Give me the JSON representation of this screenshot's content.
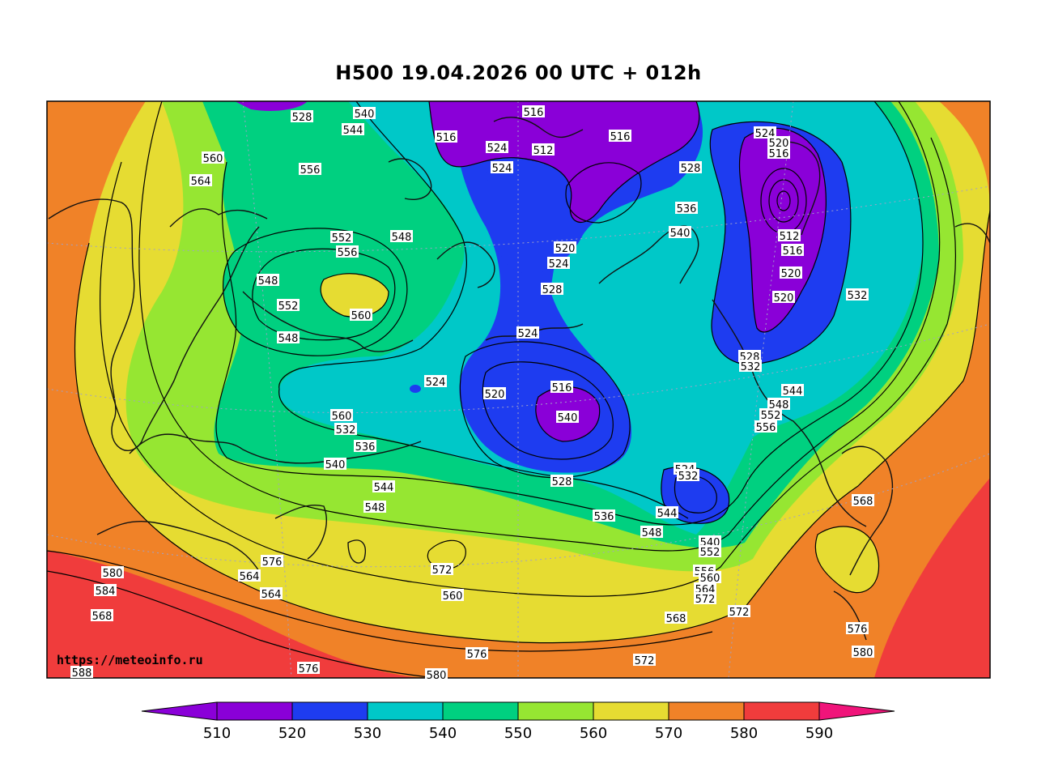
{
  "title": "H500  19.04.2026 00 UTC + 012h",
  "watermark": "https://meteoinfo.ru",
  "colorbar": {
    "ticks": [
      "510",
      "520",
      "530",
      "540",
      "550",
      "560",
      "570",
      "580",
      "590"
    ],
    "colors": [
      "#8a00d8",
      "#8a00d8",
      "#1e3cf0",
      "#00c8c8",
      "#00d080",
      "#96e632",
      "#e6dc32",
      "#f08228",
      "#f03c3c",
      "#f0147a"
    ]
  },
  "contour_labels": [
    "528",
    "540",
    "544",
    "516",
    "524",
    "524",
    "516",
    "512",
    "516",
    "528",
    "524",
    "520",
    "516",
    "560",
    "564",
    "556",
    "552",
    "556",
    "548",
    "548",
    "552",
    "560",
    "548",
    "520",
    "524",
    "536",
    "540",
    "512",
    "516",
    "520",
    "520",
    "532",
    "528",
    "524",
    "528",
    "532",
    "524",
    "520",
    "516",
    "540",
    "544",
    "548",
    "552",
    "556",
    "560",
    "532",
    "536",
    "540",
    "544",
    "548",
    "528",
    "524",
    "532",
    "544",
    "548",
    "536",
    "540",
    "552",
    "556",
    "560",
    "564",
    "572",
    "572",
    "568",
    "564",
    "576",
    "580",
    "584",
    "568",
    "564",
    "560",
    "572",
    "576",
    "580",
    "576",
    "588",
    "580",
    "576",
    "572",
    "568"
  ]
}
